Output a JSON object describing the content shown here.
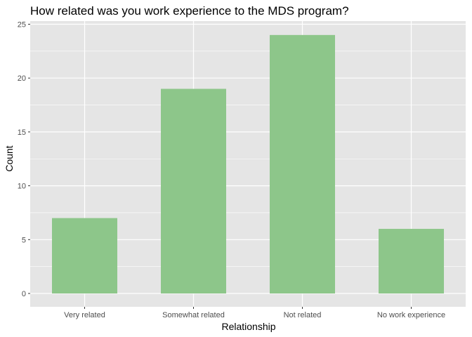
{
  "chart_data": {
    "type": "bar",
    "title": "How related was you work experience to the MDS program?",
    "xlabel": "Relationship",
    "ylabel": "Count",
    "categories": [
      "Very related",
      "Somewhat related",
      "Not related",
      "No work experience"
    ],
    "values": [
      7,
      19,
      24,
      6
    ],
    "ylim": [
      0,
      25
    ],
    "yticks": [
      0,
      5,
      10,
      15,
      20,
      25
    ],
    "grid": true,
    "legend": "none",
    "colors": {
      "panel": "#e5e5e5",
      "grid_major": "#ffffff",
      "bar": "#8dc68a"
    }
  }
}
